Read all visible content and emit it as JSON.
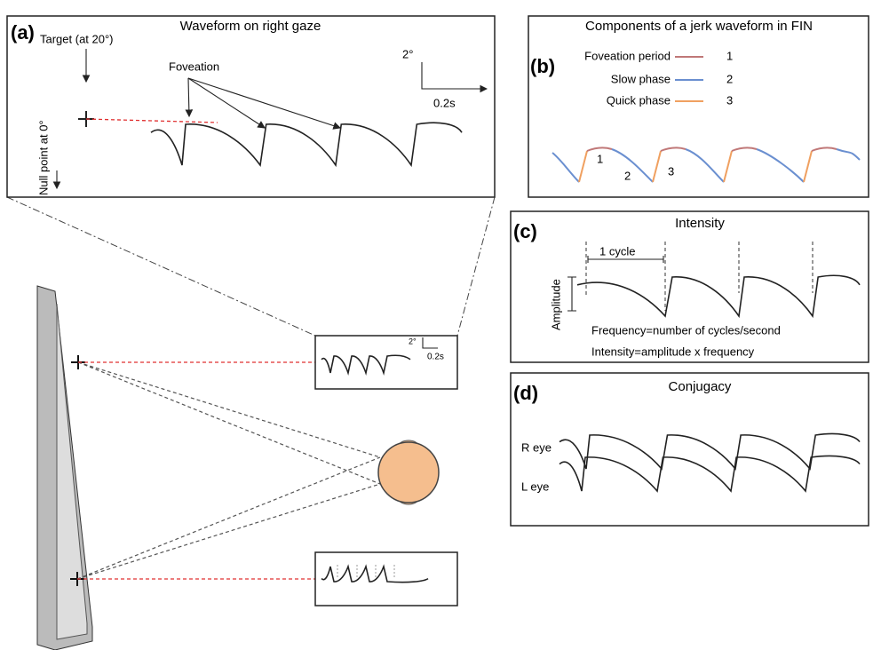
{
  "panel_a": {
    "label": "(a)",
    "title": "Waveform on right gaze",
    "target": "Target (at 20°)",
    "foveation": "Foveation",
    "scale_y": "2°",
    "scale_x": "0.2s",
    "null_point": "Null point at 0°"
  },
  "inset": {
    "scale_y": "2°",
    "scale_x": "0.2s"
  },
  "panel_b": {
    "label": "(b)",
    "title": "Components of a jerk waveform in FIN",
    "legend": [
      {
        "name": "Foveation period",
        "number": "1"
      },
      {
        "name": "Slow phase",
        "number": "2"
      },
      {
        "name": "Quick phase",
        "number": "3"
      }
    ],
    "wave_labels": [
      "1",
      "2",
      "3"
    ]
  },
  "panel_c": {
    "label": "(c)",
    "title": "Intensity",
    "cycle": "1 cycle",
    "amplitude": "Amplitude",
    "frequency": "Frequency=number of cycles/second",
    "intensity": "Intensity=amplitude x frequency"
  },
  "panel_d": {
    "label": "(d)",
    "title": "Conjugacy",
    "right_eye": "R eye",
    "left_eye": "L eye"
  }
}
